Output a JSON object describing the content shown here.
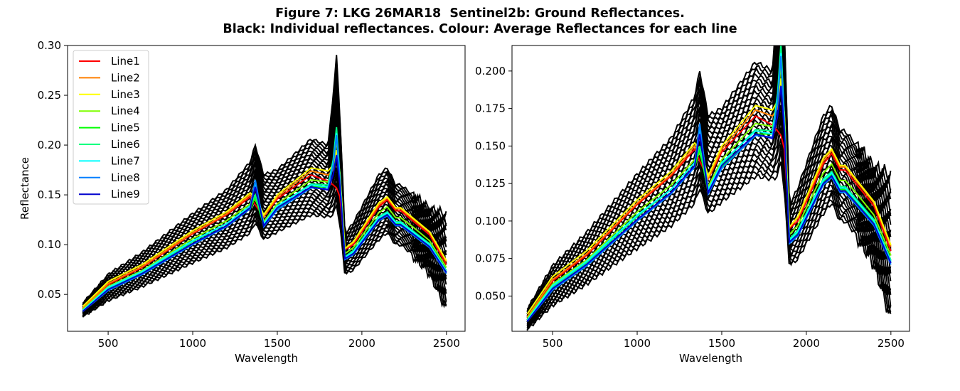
{
  "figure": {
    "title_line1": "Figure 7: LKG 26MAR18  Sentinel2b: Ground Reflectances.",
    "title_line2": "Black: Individual reflectances. Colour: Average Reflectances for each line"
  },
  "chart_data": [
    {
      "type": "line",
      "panel": "left",
      "xlabel": "Wavelength",
      "ylabel": "Reflectance",
      "xlim": [
        260,
        2610
      ],
      "ylim": [
        0.013,
        0.3
      ],
      "xticks": [
        500,
        1000,
        1500,
        2000,
        2500
      ],
      "yticks": [
        0.05,
        0.1,
        0.15,
        0.2,
        0.25,
        0.3
      ],
      "ytick_labels": [
        "0.05",
        "0.10",
        "0.15",
        "0.20",
        "0.25",
        "0.30"
      ],
      "legend": "top-left",
      "x": [
        350,
        500,
        700,
        1000,
        1200,
        1340,
        1370,
        1420,
        1500,
        1700,
        1800,
        1830,
        1850,
        1870,
        1900,
        1950,
        2100,
        2150,
        2200,
        2230,
        2300,
        2400,
        2500
      ],
      "series": [
        {
          "name": "Line1",
          "color": "#ff0000",
          "values": [
            0.036,
            0.06,
            0.077,
            0.111,
            0.13,
            0.148,
            0.14,
            0.128,
            0.146,
            0.17,
            0.164,
            0.16,
            0.157,
            0.148,
            0.095,
            0.1,
            0.138,
            0.145,
            0.134,
            0.134,
            0.124,
            0.11,
            0.08
          ]
        },
        {
          "name": "Line2",
          "color": "#ff7f00",
          "values": [
            0.036,
            0.061,
            0.078,
            0.112,
            0.131,
            0.15,
            0.145,
            0.128,
            0.148,
            0.174,
            0.17,
            0.175,
            0.19,
            0.17,
            0.096,
            0.102,
            0.14,
            0.147,
            0.136,
            0.136,
            0.126,
            0.112,
            0.083
          ]
        },
        {
          "name": "Line3",
          "color": "#ffff00",
          "values": [
            0.038,
            0.063,
            0.08,
            0.114,
            0.133,
            0.152,
            0.148,
            0.13,
            0.15,
            0.177,
            0.174,
            0.18,
            0.195,
            0.172,
            0.096,
            0.103,
            0.142,
            0.148,
            0.137,
            0.137,
            0.127,
            0.113,
            0.084
          ]
        },
        {
          "name": "Line4",
          "color": "#7fff00",
          "values": [
            0.035,
            0.058,
            0.074,
            0.106,
            0.124,
            0.141,
            0.146,
            0.123,
            0.141,
            0.165,
            0.163,
            0.178,
            0.205,
            0.168,
            0.091,
            0.097,
            0.132,
            0.138,
            0.127,
            0.127,
            0.118,
            0.104,
            0.077
          ]
        },
        {
          "name": "Line5",
          "color": "#00ff00",
          "values": [
            0.033,
            0.055,
            0.071,
            0.101,
            0.119,
            0.136,
            0.148,
            0.119,
            0.136,
            0.158,
            0.158,
            0.18,
            0.215,
            0.165,
            0.087,
            0.092,
            0.126,
            0.131,
            0.121,
            0.121,
            0.112,
            0.099,
            0.073
          ]
        },
        {
          "name": "Line6",
          "color": "#00ff7f",
          "values": [
            0.033,
            0.056,
            0.072,
            0.103,
            0.121,
            0.139,
            0.15,
            0.12,
            0.138,
            0.161,
            0.16,
            0.185,
            0.218,
            0.168,
            0.088,
            0.094,
            0.128,
            0.133,
            0.123,
            0.123,
            0.114,
            0.101,
            0.074
          ]
        },
        {
          "name": "Line7",
          "color": "#00ffff",
          "values": [
            0.034,
            0.057,
            0.073,
            0.104,
            0.121,
            0.139,
            0.162,
            0.121,
            0.139,
            0.16,
            0.158,
            0.182,
            0.212,
            0.166,
            0.087,
            0.093,
            0.127,
            0.132,
            0.122,
            0.122,
            0.113,
            0.1,
            0.073
          ]
        },
        {
          "name": "Line8",
          "color": "#007fff",
          "values": [
            0.033,
            0.054,
            0.07,
            0.1,
            0.118,
            0.136,
            0.165,
            0.118,
            0.135,
            0.157,
            0.156,
            0.18,
            0.21,
            0.163,
            0.085,
            0.09,
            0.124,
            0.129,
            0.119,
            0.119,
            0.11,
            0.097,
            0.071
          ]
        },
        {
          "name": "Line9",
          "color": "#0000cd",
          "values": [
            0.033,
            0.055,
            0.071,
            0.101,
            0.119,
            0.137,
            0.158,
            0.119,
            0.137,
            0.158,
            0.155,
            0.17,
            0.19,
            0.16,
            0.086,
            0.091,
            0.125,
            0.13,
            0.12,
            0.12,
            0.111,
            0.098,
            0.072
          ]
        }
      ],
      "envelope_upper": [
        0.041,
        0.07,
        0.092,
        0.131,
        0.155,
        0.183,
        0.2,
        0.17,
        0.175,
        0.206,
        0.2,
        0.25,
        0.289,
        0.23,
        0.11,
        0.122,
        0.17,
        0.177,
        0.16,
        0.16,
        0.15,
        0.135,
        0.13
      ],
      "envelope_lower": [
        0.028,
        0.044,
        0.058,
        0.082,
        0.097,
        0.112,
        0.122,
        0.105,
        0.113,
        0.13,
        0.128,
        0.13,
        0.14,
        0.12,
        0.07,
        0.075,
        0.105,
        0.112,
        0.1,
        0.1,
        0.09,
        0.072,
        0.035
      ]
    },
    {
      "type": "line",
      "panel": "right",
      "xlabel": "Wavelength",
      "ylabel": "",
      "xlim": [
        260,
        2610
      ],
      "ylim": [
        0.0265,
        0.217
      ],
      "xticks": [
        500,
        1000,
        1500,
        2000,
        2500
      ],
      "yticks": [
        0.05,
        0.075,
        0.1,
        0.125,
        0.15,
        0.175,
        0.2
      ],
      "ytick_labels": [
        "0.050",
        "0.075",
        "0.100",
        "0.125",
        "0.150",
        "0.175",
        "0.200"
      ],
      "x": [
        350,
        500,
        700,
        1000,
        1200,
        1340,
        1370,
        1420,
        1500,
        1700,
        1800,
        1830,
        1850,
        1870,
        1900,
        1950,
        2100,
        2150,
        2200,
        2230,
        2300,
        2400,
        2500
      ],
      "series": [
        {
          "name": "Line1",
          "color": "#ff0000",
          "values": [
            0.036,
            0.06,
            0.077,
            0.111,
            0.13,
            0.148,
            0.14,
            0.128,
            0.146,
            0.17,
            0.164,
            0.16,
            0.157,
            0.148,
            0.095,
            0.1,
            0.138,
            0.145,
            0.134,
            0.134,
            0.124,
            0.11,
            0.08
          ]
        },
        {
          "name": "Line2",
          "color": "#ff7f00",
          "values": [
            0.036,
            0.061,
            0.078,
            0.112,
            0.131,
            0.15,
            0.145,
            0.128,
            0.148,
            0.174,
            0.17,
            0.175,
            0.19,
            0.17,
            0.096,
            0.102,
            0.14,
            0.147,
            0.136,
            0.136,
            0.126,
            0.112,
            0.083
          ]
        },
        {
          "name": "Line3",
          "color": "#ffff00",
          "values": [
            0.038,
            0.063,
            0.08,
            0.114,
            0.133,
            0.152,
            0.148,
            0.13,
            0.15,
            0.177,
            0.174,
            0.18,
            0.195,
            0.172,
            0.096,
            0.103,
            0.142,
            0.148,
            0.137,
            0.137,
            0.127,
            0.113,
            0.084
          ]
        },
        {
          "name": "Line4",
          "color": "#7fff00",
          "values": [
            0.035,
            0.058,
            0.074,
            0.106,
            0.124,
            0.141,
            0.146,
            0.123,
            0.141,
            0.165,
            0.163,
            0.178,
            0.205,
            0.168,
            0.091,
            0.097,
            0.132,
            0.138,
            0.127,
            0.127,
            0.118,
            0.104,
            0.077
          ]
        },
        {
          "name": "Line5",
          "color": "#00ff00",
          "values": [
            0.033,
            0.055,
            0.071,
            0.101,
            0.119,
            0.136,
            0.148,
            0.119,
            0.136,
            0.158,
            0.158,
            0.18,
            0.215,
            0.165,
            0.087,
            0.092,
            0.126,
            0.131,
            0.121,
            0.121,
            0.112,
            0.099,
            0.073
          ]
        },
        {
          "name": "Line6",
          "color": "#00ff7f",
          "values": [
            0.033,
            0.056,
            0.072,
            0.103,
            0.121,
            0.139,
            0.15,
            0.12,
            0.138,
            0.161,
            0.16,
            0.185,
            0.218,
            0.168,
            0.088,
            0.094,
            0.128,
            0.133,
            0.123,
            0.123,
            0.114,
            0.101,
            0.074
          ]
        },
        {
          "name": "Line7",
          "color": "#00ffff",
          "values": [
            0.034,
            0.057,
            0.073,
            0.104,
            0.121,
            0.139,
            0.162,
            0.121,
            0.139,
            0.16,
            0.158,
            0.182,
            0.212,
            0.166,
            0.087,
            0.093,
            0.127,
            0.132,
            0.122,
            0.122,
            0.113,
            0.1,
            0.073
          ]
        },
        {
          "name": "Line8",
          "color": "#007fff",
          "values": [
            0.033,
            0.054,
            0.07,
            0.1,
            0.118,
            0.136,
            0.165,
            0.118,
            0.135,
            0.157,
            0.156,
            0.18,
            0.21,
            0.163,
            0.085,
            0.09,
            0.124,
            0.129,
            0.119,
            0.119,
            0.11,
            0.097,
            0.071
          ]
        },
        {
          "name": "Line9",
          "color": "#0000cd",
          "values": [
            0.033,
            0.055,
            0.071,
            0.101,
            0.119,
            0.137,
            0.158,
            0.119,
            0.137,
            0.158,
            0.155,
            0.17,
            0.19,
            0.16,
            0.086,
            0.091,
            0.125,
            0.13,
            0.12,
            0.12,
            0.111,
            0.098,
            0.072
          ]
        }
      ],
      "envelope_upper": [
        0.041,
        0.07,
        0.092,
        0.131,
        0.155,
        0.183,
        0.2,
        0.17,
        0.175,
        0.206,
        0.2,
        0.25,
        0.289,
        0.23,
        0.11,
        0.122,
        0.17,
        0.177,
        0.16,
        0.16,
        0.15,
        0.135,
        0.13
      ],
      "envelope_lower": [
        0.028,
        0.044,
        0.058,
        0.082,
        0.097,
        0.112,
        0.122,
        0.105,
        0.113,
        0.13,
        0.128,
        0.13,
        0.14,
        0.12,
        0.07,
        0.075,
        0.105,
        0.112,
        0.1,
        0.1,
        0.09,
        0.072,
        0.035
      ]
    }
  ]
}
